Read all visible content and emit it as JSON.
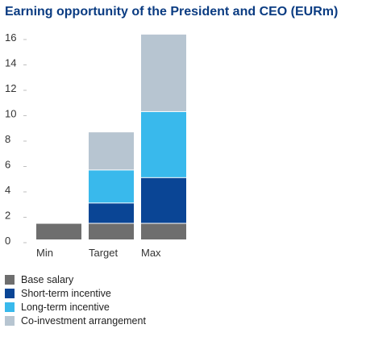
{
  "chart_data": {
    "type": "bar",
    "stacked": true,
    "title": "Earning opportunity of the President and CEO (EURm)",
    "xlabel": "",
    "ylabel": "",
    "categories": [
      "Min",
      "Target",
      "Max"
    ],
    "y_ticks": [
      0,
      2,
      4,
      6,
      8,
      10,
      12,
      14,
      16
    ],
    "ylim": [
      0,
      16
    ],
    "grid": false,
    "legend_placement": "bottom-left",
    "series": [
      {
        "name": "Base salary",
        "color": "#6e6e6e",
        "values": [
          1.3,
          1.3,
          1.3
        ]
      },
      {
        "name": "Short-term incentive",
        "color": "#0a4595",
        "values": [
          0,
          1.6,
          3.6
        ]
      },
      {
        "name": "Long-term incentive",
        "color": "#39b9ec",
        "values": [
          0,
          2.6,
          5.2
        ]
      },
      {
        "name": "Co-investment arrangement",
        "color": "#b7c5d1",
        "values": [
          0,
          3.0,
          6.1
        ]
      }
    ]
  }
}
